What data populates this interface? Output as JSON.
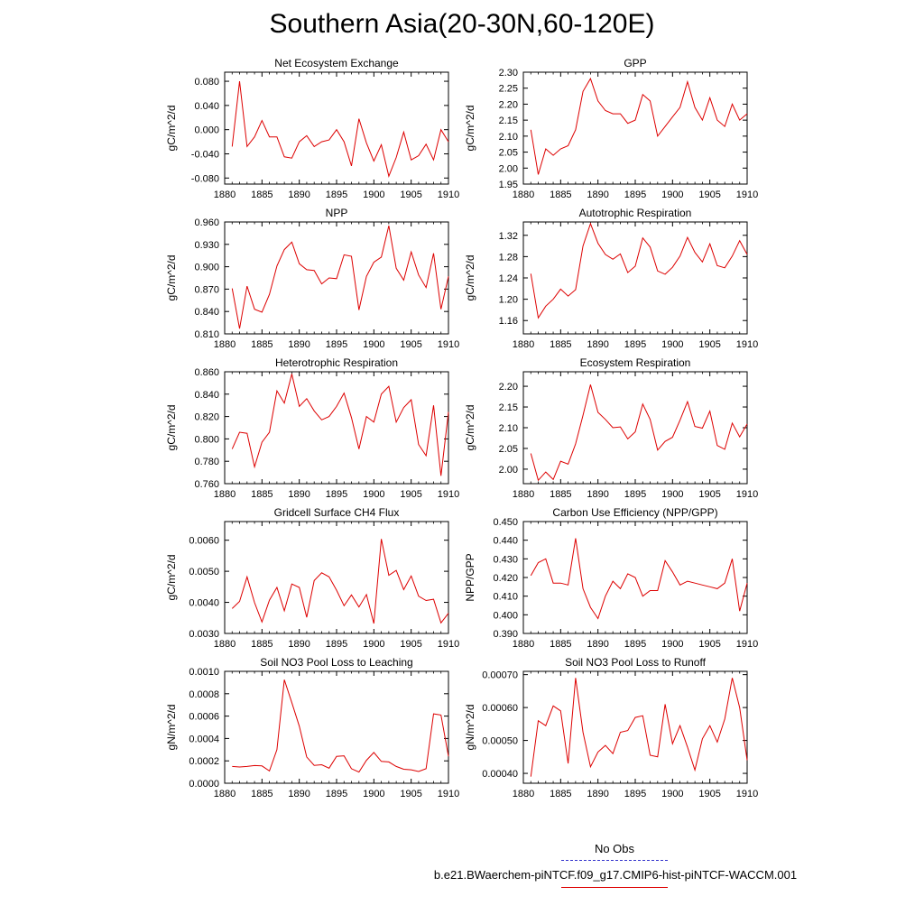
{
  "title": "Southern Asia(20-30N,60-120E)",
  "legend": {
    "obs_label": "No Obs",
    "obs_color": "#3333cc",
    "case_label": "b.e21.BWaerchem-piNTCF.f09_g17.CMIP6-hist-piNTCF-WACCM.001",
    "case_color": "#dd0000"
  },
  "chart_data": [
    {
      "type": "line",
      "title": "Net Ecosystem Exchange",
      "ylabel": "gC/m^2/d",
      "xlim": [
        1880,
        1910
      ],
      "ylim": [
        -0.09,
        0.095
      ],
      "xticks": [
        "1880",
        "1885",
        "1890",
        "1895",
        "1900",
        "1905",
        "1910"
      ],
      "yticks": [
        "-0.080",
        "-0.040",
        "0.000",
        "0.040",
        "0.080"
      ],
      "x": [
        1881,
        1882,
        1883,
        1884,
        1885,
        1886,
        1887,
        1888,
        1889,
        1890,
        1891,
        1892,
        1893,
        1894,
        1895,
        1896,
        1897,
        1898,
        1899,
        1900,
        1901,
        1902,
        1903,
        1904,
        1905,
        1906,
        1907,
        1908,
        1909,
        1910
      ],
      "values": [
        -0.028,
        0.08,
        -0.028,
        -0.012,
        0.015,
        -0.012,
        -0.012,
        -0.045,
        -0.047,
        -0.02,
        -0.01,
        -0.028,
        -0.02,
        -0.017,
        0.0,
        -0.02,
        -0.06,
        0.018,
        -0.022,
        -0.052,
        -0.025,
        -0.077,
        -0.046,
        -0.004,
        -0.05,
        -0.043,
        -0.024,
        -0.05,
        0.0,
        -0.02
      ]
    },
    {
      "type": "line",
      "title": "GPP",
      "ylabel": "gC/m^2/d",
      "xlim": [
        1880,
        1910
      ],
      "ylim": [
        1.95,
        2.3
      ],
      "xticks": [
        "1880",
        "1885",
        "1890",
        "1895",
        "1900",
        "1905",
        "1910"
      ],
      "yticks": [
        "1.95",
        "2.00",
        "2.05",
        "2.10",
        "2.15",
        "2.20",
        "2.25",
        "2.30"
      ],
      "x": [
        1881,
        1882,
        1883,
        1884,
        1885,
        1886,
        1887,
        1888,
        1889,
        1890,
        1891,
        1892,
        1893,
        1894,
        1895,
        1896,
        1897,
        1898,
        1899,
        1900,
        1901,
        1902,
        1903,
        1904,
        1905,
        1906,
        1907,
        1908,
        1909,
        1910
      ],
      "values": [
        2.12,
        1.98,
        2.06,
        2.04,
        2.06,
        2.07,
        2.12,
        2.24,
        2.28,
        2.21,
        2.18,
        2.17,
        2.17,
        2.14,
        2.15,
        2.23,
        2.21,
        2.1,
        2.13,
        2.16,
        2.19,
        2.27,
        2.19,
        2.15,
        2.22,
        2.15,
        2.13,
        2.2,
        2.15,
        2.17
      ]
    },
    {
      "type": "line",
      "title": "NPP",
      "ylabel": "gC/m^2/d",
      "xlim": [
        1880,
        1910
      ],
      "ylim": [
        0.81,
        0.96
      ],
      "xticks": [
        "1880",
        "1885",
        "1890",
        "1895",
        "1900",
        "1905",
        "1910"
      ],
      "yticks": [
        "0.810",
        "0.840",
        "0.870",
        "0.900",
        "0.930",
        "0.960"
      ],
      "x": [
        1881,
        1882,
        1883,
        1884,
        1885,
        1886,
        1887,
        1888,
        1889,
        1890,
        1891,
        1892,
        1893,
        1894,
        1895,
        1896,
        1897,
        1898,
        1899,
        1900,
        1901,
        1902,
        1903,
        1904,
        1905,
        1906,
        1907,
        1908,
        1909,
        1910
      ],
      "values": [
        0.871,
        0.817,
        0.874,
        0.843,
        0.839,
        0.863,
        0.901,
        0.923,
        0.933,
        0.904,
        0.896,
        0.895,
        0.877,
        0.885,
        0.884,
        0.916,
        0.914,
        0.842,
        0.887,
        0.906,
        0.913,
        0.955,
        0.898,
        0.882,
        0.92,
        0.889,
        0.872,
        0.918,
        0.843,
        0.887
      ]
    },
    {
      "type": "line",
      "title": "Autotrophic Respiration",
      "ylabel": "gC/m^2/d",
      "xlim": [
        1880,
        1910
      ],
      "ylim": [
        1.135,
        1.345
      ],
      "xticks": [
        "1880",
        "1885",
        "1890",
        "1895",
        "1900",
        "1905",
        "1910"
      ],
      "yticks": [
        "1.16",
        "1.20",
        "1.24",
        "1.28",
        "1.32"
      ],
      "x": [
        1881,
        1882,
        1883,
        1884,
        1885,
        1886,
        1887,
        1888,
        1889,
        1890,
        1891,
        1892,
        1893,
        1894,
        1895,
        1896,
        1897,
        1898,
        1899,
        1900,
        1901,
        1902,
        1903,
        1904,
        1905,
        1906,
        1907,
        1908,
        1909,
        1910
      ],
      "values": [
        1.248,
        1.165,
        1.187,
        1.2,
        1.219,
        1.206,
        1.218,
        1.3,
        1.342,
        1.305,
        1.284,
        1.275,
        1.285,
        1.25,
        1.262,
        1.315,
        1.298,
        1.253,
        1.247,
        1.26,
        1.281,
        1.316,
        1.288,
        1.27,
        1.304,
        1.263,
        1.259,
        1.281,
        1.31,
        1.284
      ]
    },
    {
      "type": "line",
      "title": "Heterotrophic Respiration",
      "ylabel": "gC/m^2/d",
      "xlim": [
        1880,
        1910
      ],
      "ylim": [
        0.76,
        0.86
      ],
      "xticks": [
        "1880",
        "1885",
        "1890",
        "1895",
        "1900",
        "1905",
        "1910"
      ],
      "yticks": [
        "0.760",
        "0.780",
        "0.800",
        "0.820",
        "0.840",
        "0.860"
      ],
      "x": [
        1881,
        1882,
        1883,
        1884,
        1885,
        1886,
        1887,
        1888,
        1889,
        1890,
        1891,
        1892,
        1893,
        1894,
        1895,
        1896,
        1897,
        1898,
        1899,
        1900,
        1901,
        1902,
        1903,
        1904,
        1905,
        1906,
        1907,
        1908,
        1909,
        1910
      ],
      "values": [
        0.791,
        0.806,
        0.805,
        0.775,
        0.797,
        0.806,
        0.843,
        0.832,
        0.858,
        0.829,
        0.836,
        0.825,
        0.817,
        0.82,
        0.829,
        0.841,
        0.819,
        0.791,
        0.82,
        0.815,
        0.84,
        0.847,
        0.815,
        0.828,
        0.835,
        0.795,
        0.785,
        0.83,
        0.767,
        0.824
      ]
    },
    {
      "type": "line",
      "title": "Ecosystem Respiration",
      "ylabel": "gC/m^2/d",
      "xlim": [
        1880,
        1910
      ],
      "ylim": [
        1.965,
        2.235
      ],
      "xticks": [
        "1880",
        "1885",
        "1890",
        "1895",
        "1900",
        "1905",
        "1910"
      ],
      "yticks": [
        "2.00",
        "2.05",
        "2.10",
        "2.15",
        "2.20"
      ],
      "x": [
        1881,
        1882,
        1883,
        1884,
        1885,
        1886,
        1887,
        1888,
        1889,
        1890,
        1891,
        1892,
        1893,
        1894,
        1895,
        1896,
        1897,
        1898,
        1899,
        1900,
        1901,
        1902,
        1903,
        1904,
        1905,
        1906,
        1907,
        1908,
        1909,
        1910
      ],
      "values": [
        2.038,
        1.973,
        1.993,
        1.975,
        2.019,
        2.012,
        2.061,
        2.13,
        2.204,
        2.137,
        2.12,
        2.1,
        2.102,
        2.073,
        2.09,
        2.157,
        2.12,
        2.046,
        2.067,
        2.077,
        2.118,
        2.163,
        2.103,
        2.099,
        2.14,
        2.057,
        2.048,
        2.111,
        2.078,
        2.109
      ]
    },
    {
      "type": "line",
      "title": "Gridcell Surface CH4 Flux",
      "ylabel": "gC/m^2/d",
      "xlim": [
        1880,
        1910
      ],
      "ylim": [
        0.003,
        0.0066
      ],
      "xticks": [
        "1880",
        "1885",
        "1890",
        "1895",
        "1900",
        "1905",
        "1910"
      ],
      "yticks": [
        "0.0030",
        "0.0040",
        "0.0050",
        "0.0060"
      ],
      "x": [
        1881,
        1882,
        1883,
        1884,
        1885,
        1886,
        1887,
        1888,
        1889,
        1890,
        1891,
        1892,
        1893,
        1894,
        1895,
        1896,
        1897,
        1898,
        1899,
        1900,
        1901,
        1902,
        1903,
        1904,
        1905,
        1906,
        1907,
        1908,
        1909,
        1910
      ],
      "values": [
        0.0038,
        0.00403,
        0.00482,
        0.00399,
        0.00337,
        0.00407,
        0.00448,
        0.00373,
        0.00459,
        0.00448,
        0.00352,
        0.0047,
        0.00495,
        0.00482,
        0.00439,
        0.00389,
        0.00424,
        0.00385,
        0.00425,
        0.00332,
        0.00604,
        0.00487,
        0.00503,
        0.00441,
        0.00485,
        0.0042,
        0.00406,
        0.0041,
        0.00334,
        0.00365
      ]
    },
    {
      "type": "line",
      "title": "Carbon Use Efficiency (NPP/GPP)",
      "ylabel": "NPP/GPP",
      "xlim": [
        1880,
        1910
      ],
      "ylim": [
        0.39,
        0.45
      ],
      "xticks": [
        "1880",
        "1885",
        "1890",
        "1895",
        "1900",
        "1905",
        "1910"
      ],
      "yticks": [
        "0.390",
        "0.400",
        "0.410",
        "0.420",
        "0.430",
        "0.440",
        "0.450"
      ],
      "x": [
        1881,
        1882,
        1883,
        1884,
        1885,
        1886,
        1887,
        1888,
        1889,
        1890,
        1891,
        1892,
        1893,
        1894,
        1895,
        1896,
        1897,
        1898,
        1899,
        1900,
        1901,
        1902,
        1903,
        1904,
        1905,
        1906,
        1907,
        1908,
        1909,
        1910
      ],
      "values": [
        0.421,
        0.428,
        0.43,
        0.417,
        0.417,
        0.416,
        0.441,
        0.414,
        0.404,
        0.398,
        0.41,
        0.418,
        0.414,
        0.422,
        0.42,
        0.41,
        0.413,
        0.413,
        0.429,
        0.423,
        0.416,
        0.418,
        0.417,
        0.416,
        0.415,
        0.414,
        0.417,
        0.43,
        0.402,
        0.417
      ]
    },
    {
      "type": "line",
      "title": "Soil NO3 Pool Loss to Leaching",
      "ylabel": "gN/m^2/d",
      "xlim": [
        1880,
        1910
      ],
      "ylim": [
        0.0,
        0.001
      ],
      "xticks": [
        "1880",
        "1885",
        "1890",
        "1895",
        "1900",
        "1905",
        "1910"
      ],
      "yticks": [
        "0.0000",
        "0.0002",
        "0.0004",
        "0.0006",
        "0.0008",
        "0.0010"
      ],
      "x": [
        1881,
        1882,
        1883,
        1884,
        1885,
        1886,
        1887,
        1888,
        1889,
        1890,
        1891,
        1892,
        1893,
        1894,
        1895,
        1896,
        1897,
        1898,
        1899,
        1900,
        1901,
        1902,
        1903,
        1904,
        1905,
        1906,
        1907,
        1908,
        1909,
        1910
      ],
      "values": [
        0.00015,
        0.000145,
        0.00015,
        0.000158,
        0.000155,
        0.00011,
        0.0003,
        0.000925,
        0.00072,
        0.00051,
        0.000235,
        0.00016,
        0.000165,
        0.000135,
        0.00024,
        0.000245,
        0.00013,
        0.0001,
        0.000205,
        0.000275,
        0.000195,
        0.00019,
        0.00015,
        0.000125,
        0.00012,
        0.000105,
        0.00013,
        0.00062,
        0.00061,
        0.00024
      ]
    },
    {
      "type": "line",
      "title": "Soil NO3 Pool Loss to Runoff",
      "ylabel": "gN/m^2/d",
      "xlim": [
        1880,
        1910
      ],
      "ylim": [
        0.00037,
        0.00071
      ],
      "xticks": [
        "1880",
        "1885",
        "1890",
        "1895",
        "1900",
        "1905",
        "1910"
      ],
      "yticks": [
        "0.00040",
        "0.00050",
        "0.00060",
        "0.00070"
      ],
      "x": [
        1881,
        1882,
        1883,
        1884,
        1885,
        1886,
        1887,
        1888,
        1889,
        1890,
        1891,
        1892,
        1893,
        1894,
        1895,
        1896,
        1897,
        1898,
        1899,
        1900,
        1901,
        1902,
        1903,
        1904,
        1905,
        1906,
        1907,
        1908,
        1909,
        1910
      ],
      "values": [
        0.00039,
        0.00056,
        0.000545,
        0.000605,
        0.00059,
        0.00043,
        0.00069,
        0.000525,
        0.00042,
        0.000465,
        0.000485,
        0.00046,
        0.000525,
        0.00053,
        0.00057,
        0.000575,
        0.000455,
        0.00045,
        0.00061,
        0.00049,
        0.000545,
        0.00048,
        0.00041,
        0.000505,
        0.000545,
        0.000495,
        0.000565,
        0.00069,
        0.0006,
        0.00044
      ]
    }
  ]
}
